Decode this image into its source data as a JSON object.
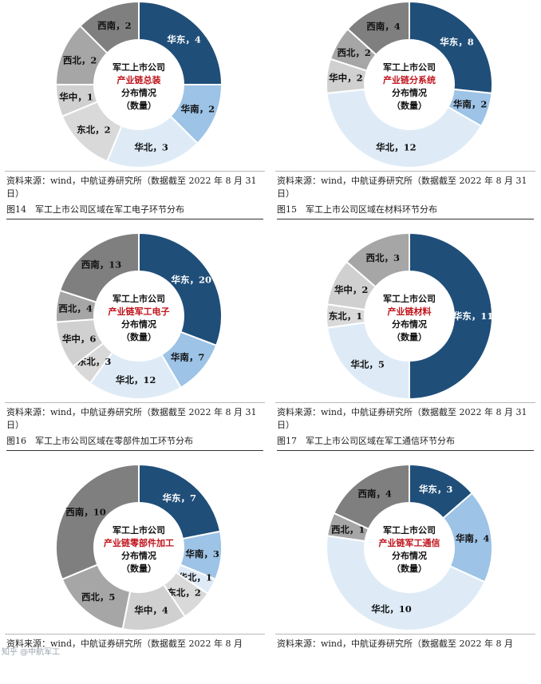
{
  "panels": [
    {
      "center_lines": [
        "军工上市公司",
        "产业链总装",
        "分布情况",
        "（数量）"
      ],
      "source": "资料来源：wind，中航证券研究所（数据截至 2022 年 8 月 31 日）",
      "caption": "图14　军工上市公司区域在军工电子环节分布"
    },
    {
      "center_lines": [
        "军工上市公司",
        "产业链分系统",
        "分布情况",
        "（数量）"
      ],
      "source": "资料来源：wind，中航证券研究所（数据截至 2022 年 8 月 31 日）",
      "caption": "图15　军工上市公司区域在材料环节分布"
    },
    {
      "center_lines": [
        "军工上市公司",
        "产业链军工电子",
        "分布情况",
        "（数量）"
      ],
      "source": "资料来源：wind，中航证券研究所（数据截至 2022 年 8 月 31 日）",
      "caption": "图16　军工上市公司区域在零部件加工环节分布"
    },
    {
      "center_lines": [
        "军工上市公司",
        "产业链材料",
        "分布情况",
        "（数量）"
      ],
      "source": "资料来源：wind，中航证券研究所（数据截至 2022 年 8 月 31 日）",
      "caption": "图17　军工上市公司区域在军工通信环节分布"
    },
    {
      "center_lines": [
        "军工上市公司",
        "产业链零部件加工",
        "分布情况",
        "（数量）"
      ],
      "source": "资料来源：wind，中航证券研究所（数据截至 2022 年 8 月",
      "caption": ""
    },
    {
      "center_lines": [
        "军工上市公司",
        "产业链军工通信",
        "分布情况",
        "（数量）"
      ],
      "source": "资料来源：wind，中航证券研究所（数据截至 2022 年 8 月",
      "caption": ""
    }
  ],
  "region_colors": {
    "华东": "#1f4e79",
    "华南": "#9dc3e6",
    "华北": "#deebf7",
    "东北": "#d9d9d9",
    "华中": "#d0d0d0",
    "西北": "#a6a6a6",
    "西南": "#7f7f7f"
  },
  "label_colors": {
    "华东": "#ffffff",
    "华南": "#111111",
    "华北": "#111111",
    "东北": "#111111",
    "华中": "#111111",
    "西北": "#111111",
    "西南": "#111111"
  },
  "watermark": "知乎 @中航军工",
  "chart_data": [
    {
      "type": "pie",
      "title": "",
      "categories": [
        "华东",
        "华南",
        "华北",
        "东北",
        "华中",
        "西北",
        "西南"
      ],
      "values": [
        4,
        2,
        3,
        2,
        1,
        2,
        2
      ],
      "start": "华东"
    },
    {
      "type": "pie",
      "title": "",
      "categories": [
        "华东",
        "华南",
        "华北",
        "华中",
        "西北",
        "西南"
      ],
      "values": [
        8,
        2,
        12,
        2,
        2,
        4
      ],
      "start": "华东"
    },
    {
      "type": "pie",
      "title": "",
      "categories": [
        "华东",
        "华南",
        "华北",
        "东北",
        "华中",
        "西北",
        "西南"
      ],
      "values": [
        20,
        7,
        12,
        3,
        6,
        4,
        13
      ],
      "start": "华东"
    },
    {
      "type": "pie",
      "title": "",
      "categories": [
        "华东",
        "华北",
        "东北",
        "华中",
        "西北"
      ],
      "values": [
        11,
        5,
        1,
        2,
        3
      ],
      "start": "华东"
    },
    {
      "type": "pie",
      "title": "",
      "categories": [
        "华东",
        "华南",
        "华北",
        "东北",
        "华中",
        "西北",
        "西南"
      ],
      "values": [
        7,
        3,
        1,
        2,
        4,
        5,
        10
      ],
      "start": "华东"
    },
    {
      "type": "pie",
      "title": "",
      "categories": [
        "华东",
        "华南",
        "华北",
        "西北",
        "西南"
      ],
      "values": [
        3,
        4,
        10,
        1,
        4
      ],
      "start": "华东"
    }
  ]
}
